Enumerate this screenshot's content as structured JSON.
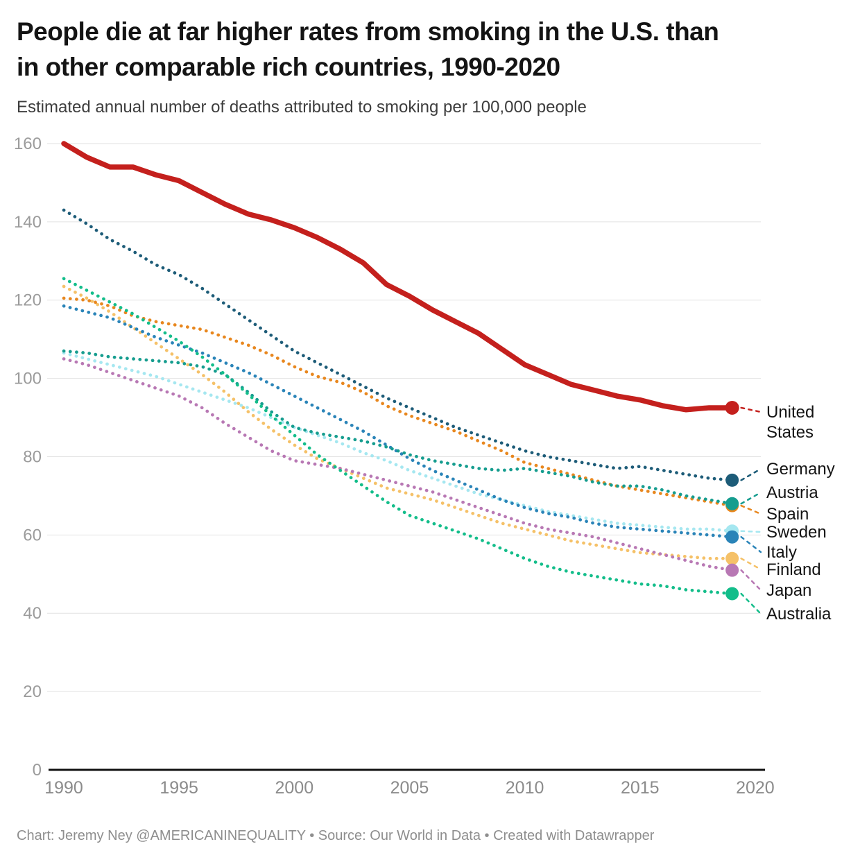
{
  "header": {
    "title_lines": [
      "People die at far higher rates from smoking in the U.S. than",
      "in other comparable rich countries, 1990-2020"
    ],
    "subtitle": "Estimated annual number of deaths attributed to smoking per 100,000 people"
  },
  "footer": {
    "credit": "Chart: Jeremy Ney @AMERICANINEQUALITY • Source: Our World in Data • Created with Datawrapper"
  },
  "chart_data": {
    "type": "line",
    "title": "People die at far higher rates from smoking in the U.S. than in other comparable rich countries, 1990-2020",
    "subtitle": "Estimated annual number of deaths attributed to smoking per 100,000 people",
    "x_start_year": 1990,
    "x": [
      1990,
      1991,
      1992,
      1993,
      1994,
      1995,
      1996,
      1997,
      1998,
      1999,
      2000,
      2001,
      2002,
      2003,
      2004,
      2005,
      2006,
      2007,
      2008,
      2009,
      2010,
      2011,
      2012,
      2013,
      2014,
      2015,
      2016,
      2017,
      2018,
      2019
    ],
    "x_ticks": [
      1990,
      1995,
      2000,
      2005,
      2010,
      2015,
      2020
    ],
    "y_ticks": [
      0,
      20,
      40,
      60,
      80,
      100,
      120,
      140,
      160
    ],
    "xlim": [
      1990,
      2020
    ],
    "ylim": [
      0,
      160
    ],
    "grid": "horizontal",
    "legend_position": "right-edge-labels",
    "series": [
      {
        "name": "United States",
        "color": "#c4201d",
        "style": "solid",
        "values": [
          160,
          156.5,
          154,
          154,
          152,
          150.5,
          147.5,
          144.5,
          142,
          140.5,
          138.5,
          136,
          133,
          129.5,
          124,
          121,
          117.5,
          114.5,
          111.5,
          107.5,
          103.5,
          101,
          98.5,
          97,
          95.5,
          94.5,
          93,
          92,
          92.5,
          92.5
        ]
      },
      {
        "name": "Germany",
        "color": "#1d5c78",
        "style": "dotted",
        "values": [
          143,
          139.5,
          135.5,
          132.5,
          129,
          126.5,
          123,
          119,
          115,
          111,
          107,
          104,
          101,
          98,
          95,
          92.5,
          90,
          87.5,
          85.5,
          83.5,
          81.5,
          80,
          79,
          78,
          77,
          77.5,
          76.5,
          75.5,
          74.5,
          74
        ]
      },
      {
        "name": "Austria",
        "color": "#169d8f",
        "style": "dotted",
        "values": [
          107,
          106.5,
          105.5,
          105,
          104.5,
          104,
          103,
          101,
          96.5,
          91.5,
          87.5,
          86,
          85,
          84,
          82.5,
          80.5,
          79,
          78,
          77,
          76.5,
          77,
          76,
          75,
          73.5,
          72.5,
          72.5,
          71.5,
          70,
          69,
          68
        ]
      },
      {
        "name": "Spain",
        "color": "#e8871e",
        "style": "dotted",
        "values": [
          120.5,
          120,
          118.5,
          116,
          114.5,
          113.5,
          112.5,
          110.5,
          108.5,
          106,
          103,
          100.5,
          99,
          96.5,
          93,
          90.5,
          88.5,
          86.5,
          84,
          81.5,
          78.5,
          77,
          75.5,
          74,
          72.5,
          71.5,
          70.5,
          69.5,
          68.5,
          67.5
        ]
      },
      {
        "name": "Sweden",
        "color": "#a5e7f0",
        "style": "dotted",
        "values": [
          106.5,
          105,
          103.5,
          102,
          100.5,
          98.5,
          96.5,
          94.5,
          92.5,
          90,
          87.5,
          85.5,
          83.5,
          81,
          79,
          76.5,
          74.5,
          72.5,
          70.5,
          69,
          67.5,
          66,
          65,
          64,
          63,
          62.5,
          62,
          61.5,
          61.5,
          61
        ]
      },
      {
        "name": "Italy",
        "color": "#2a84b8",
        "style": "dotted",
        "values": [
          118.5,
          117,
          115.5,
          113,
          110.5,
          108.5,
          106.5,
          104,
          101.5,
          98.5,
          95.5,
          92.5,
          89.5,
          86.5,
          83,
          79.5,
          76.5,
          74,
          71.5,
          69,
          67,
          65.5,
          64.5,
          63,
          62,
          61.5,
          61,
          60.5,
          60,
          59.5
        ]
      },
      {
        "name": "Finland",
        "color": "#f5c168",
        "style": "dotted",
        "values": [
          123.5,
          120.5,
          117,
          113,
          109,
          105,
          101,
          96.5,
          91.5,
          87,
          83,
          79.5,
          77,
          74.5,
          72,
          70.5,
          69,
          67,
          65,
          63,
          61.5,
          60,
          58.5,
          57.5,
          56.5,
          55.5,
          55,
          54.5,
          54,
          54
        ]
      },
      {
        "name": "Japan",
        "color": "#b878b4",
        "style": "dotted",
        "values": [
          105,
          103.5,
          101.5,
          99.5,
          97.5,
          95.5,
          92.5,
          88.5,
          85,
          81.5,
          79,
          78,
          77,
          75.5,
          74,
          72.5,
          71,
          69,
          67,
          65,
          63,
          61.5,
          60.5,
          59.5,
          58,
          56.5,
          55,
          53.5,
          52,
          51
        ]
      },
      {
        "name": "Australia",
        "color": "#13bd8a",
        "style": "dotted",
        "values": [
          125.5,
          122.5,
          119.5,
          116.5,
          113,
          109.5,
          105.5,
          101,
          96,
          90.5,
          85.5,
          80.5,
          76.5,
          72.5,
          68.5,
          65,
          63,
          61,
          59,
          56.5,
          54,
          52,
          50.5,
          49.5,
          48.5,
          47.5,
          47,
          46,
          45.5,
          45
        ]
      }
    ]
  }
}
